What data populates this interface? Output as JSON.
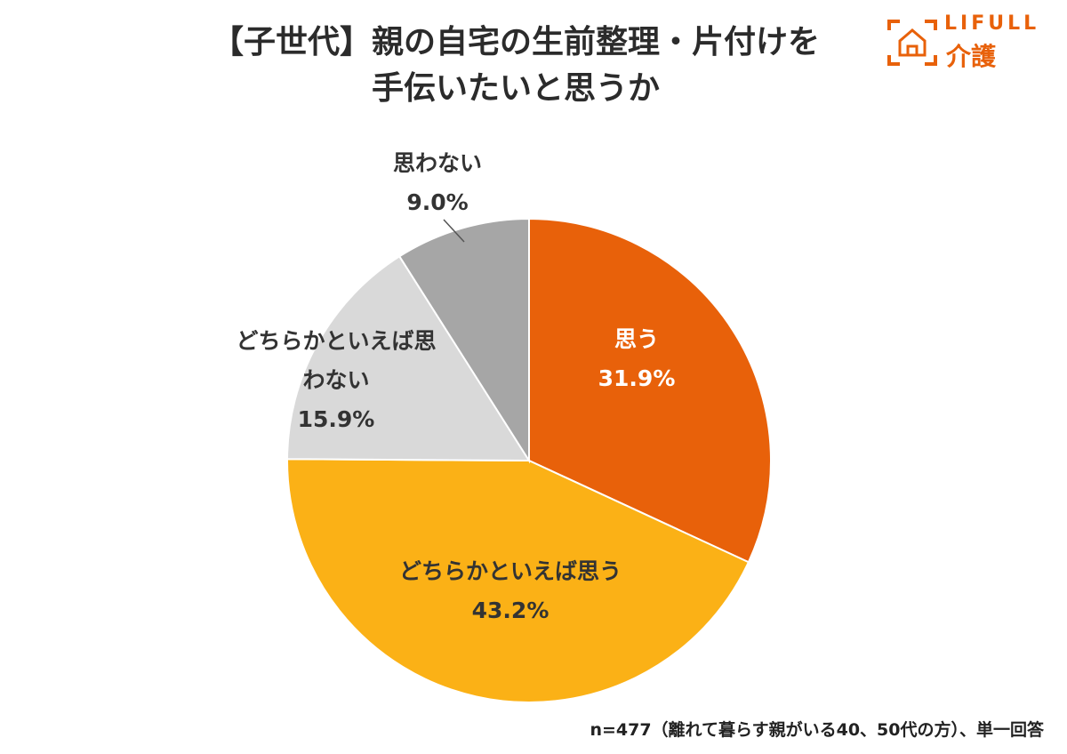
{
  "chart_data": {
    "type": "pie",
    "title": "【子世代】親の自宅の生前整理・片付けを\n手伝いたいと思うか",
    "categories": [
      "思う",
      "どちらかといえば思う",
      "どちらかといえば思わない",
      "思わない"
    ],
    "values": [
      31.9,
      43.2,
      15.9,
      9.0
    ],
    "value_labels": [
      "31.9%",
      "43.2%",
      "15.9%",
      "9.0%"
    ],
    "colors": [
      "#e8610a",
      "#fbb116",
      "#d9d9d9",
      "#a6a6a6"
    ],
    "note": "n=477（離れて暮らす親がいる40、50代の方）、単一回答"
  },
  "logo": {
    "brand": "LIFULL",
    "service": "介護"
  }
}
